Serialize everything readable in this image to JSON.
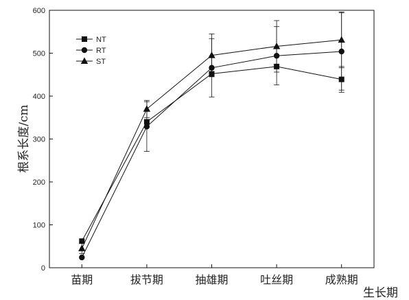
{
  "chart_data": {
    "type": "line",
    "title": "",
    "xlabel": "生长期",
    "ylabel": "根系长度/cm",
    "categories": [
      "苗期",
      "拔节期",
      "抽雄期",
      "吐丝期",
      "成熟期"
    ],
    "ylim": [
      0,
      600
    ],
    "yticks": [
      0,
      100,
      200,
      300,
      400,
      500,
      600
    ],
    "grid": false,
    "legend_position": "top-left",
    "series": [
      {
        "name": "NT",
        "marker": "square",
        "values": [
          62,
          340,
          452,
          469,
          439
        ],
        "errors": [
          0,
          0,
          0,
          0,
          30
        ]
      },
      {
        "name": "RT",
        "marker": "circle",
        "values": [
          24,
          329,
          466,
          494,
          504
        ],
        "errors": [
          0,
          58,
          68,
          68,
          90
        ]
      },
      {
        "name": "ST",
        "marker": "triangle",
        "values": [
          45,
          370,
          495,
          516,
          531
        ],
        "errors": [
          12,
          20,
          50,
          60,
          65
        ]
      }
    ]
  }
}
